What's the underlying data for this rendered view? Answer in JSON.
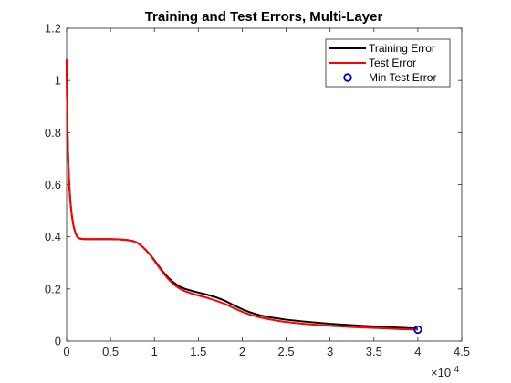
{
  "chart_data": {
    "type": "line",
    "title": "Training and Test Errors, Multi-Layer",
    "xlabel": "",
    "ylabel": "",
    "xlim": [
      0,
      45000
    ],
    "ylim": [
      0,
      1.2
    ],
    "x_ticks": [
      0,
      5000,
      10000,
      15000,
      20000,
      25000,
      30000,
      35000,
      40000,
      45000
    ],
    "x_tick_labels": [
      "0",
      "0.5",
      "1",
      "1.5",
      "2",
      "2.5",
      "3",
      "3.5",
      "4",
      "4.5"
    ],
    "x_exponent_label": "×10",
    "x_exponent_power": "4",
    "y_ticks": [
      0,
      0.2,
      0.4,
      0.6,
      0.8,
      1.0,
      1.2
    ],
    "y_tick_labels": [
      "0",
      "0.2",
      "0.4",
      "0.6",
      "0.8",
      "1",
      "1.2"
    ],
    "grid": false,
    "legend_position": "top-right",
    "series": [
      {
        "name": "Training Error",
        "color": "#000000",
        "x": [
          0,
          50,
          100,
          150,
          200,
          300,
          400,
          500,
          600,
          800,
          1000,
          1200,
          1500,
          2000,
          3000,
          4000,
          5000,
          6000,
          7000,
          7500,
          8000,
          8500,
          9000,
          9500,
          10000,
          10500,
          11000,
          11500,
          12000,
          12500,
          13000,
          13500,
          14000,
          15000,
          16000,
          17000,
          18000,
          19000,
          20000,
          21000,
          22000,
          23000,
          24000,
          25000,
          27000,
          30000,
          33000,
          36000,
          38000,
          40000
        ],
        "y": [
          1.08,
          0.92,
          0.82,
          0.74,
          0.68,
          0.6,
          0.55,
          0.51,
          0.48,
          0.44,
          0.415,
          0.4,
          0.393,
          0.391,
          0.391,
          0.391,
          0.391,
          0.39,
          0.387,
          0.384,
          0.378,
          0.366,
          0.35,
          0.332,
          0.31,
          0.287,
          0.265,
          0.246,
          0.23,
          0.217,
          0.207,
          0.2,
          0.195,
          0.186,
          0.178,
          0.168,
          0.155,
          0.138,
          0.122,
          0.109,
          0.099,
          0.092,
          0.087,
          0.082,
          0.075,
          0.066,
          0.06,
          0.054,
          0.051,
          0.048
        ]
      },
      {
        "name": "Test Error",
        "color": "#ff0000",
        "x": [
          0,
          50,
          100,
          150,
          200,
          300,
          400,
          500,
          600,
          800,
          1000,
          1200,
          1500,
          2000,
          3000,
          4000,
          5000,
          6000,
          7000,
          7500,
          8000,
          8500,
          9000,
          9500,
          10000,
          10500,
          11000,
          11500,
          12000,
          12500,
          13000,
          13500,
          14000,
          15000,
          16000,
          17000,
          18000,
          19000,
          20000,
          21000,
          22000,
          23000,
          24000,
          25000,
          27000,
          30000,
          33000,
          36000,
          38000,
          40000
        ],
        "y": [
          1.08,
          0.92,
          0.82,
          0.74,
          0.68,
          0.6,
          0.55,
          0.51,
          0.48,
          0.44,
          0.415,
          0.4,
          0.393,
          0.391,
          0.391,
          0.391,
          0.391,
          0.39,
          0.387,
          0.384,
          0.378,
          0.366,
          0.35,
          0.331,
          0.308,
          0.284,
          0.261,
          0.241,
          0.224,
          0.21,
          0.199,
          0.191,
          0.185,
          0.175,
          0.166,
          0.155,
          0.143,
          0.127,
          0.112,
          0.1,
          0.091,
          0.084,
          0.078,
          0.073,
          0.066,
          0.058,
          0.053,
          0.049,
          0.046,
          0.044
        ]
      },
      {
        "name": "Min Test Error",
        "color": "#0000cc",
        "marker": "circle",
        "x": [
          40000
        ],
        "y": [
          0.044
        ]
      }
    ]
  }
}
